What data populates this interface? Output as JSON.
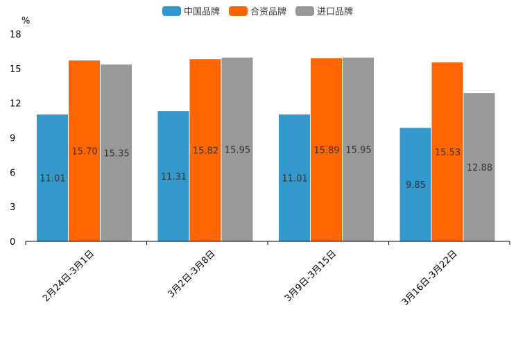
{
  "chart_data": {
    "type": "bar",
    "title": "",
    "ylabel": "%",
    "xlabel": "",
    "ylim": [
      0,
      18
    ],
    "yticks": [
      0,
      3,
      6,
      9,
      12,
      15,
      18
    ],
    "categories": [
      "2月24日-3月1日",
      "3月2日-3月8日",
      "3月9日-3月15日",
      "3月16日-3月22日"
    ],
    "series": [
      {
        "name": "中国品牌",
        "color": "#3399cc",
        "values": [
          11.01,
          11.31,
          11.01,
          9.85
        ],
        "labels": [
          "11.01",
          "11.31",
          "11.01",
          "9.85"
        ]
      },
      {
        "name": "合资品牌",
        "color": "#ff6600",
        "values": [
          15.7,
          15.82,
          15.89,
          15.53
        ],
        "labels": [
          "15.70",
          "15.82",
          "15.89",
          "15.53"
        ]
      },
      {
        "name": "进口品牌",
        "color": "#999999",
        "values": [
          15.35,
          15.95,
          15.95,
          12.88
        ],
        "labels": [
          "15.35",
          "15.95",
          "15.95",
          "12.88"
        ]
      }
    ],
    "legend_position": "top-center",
    "grid": false
  }
}
